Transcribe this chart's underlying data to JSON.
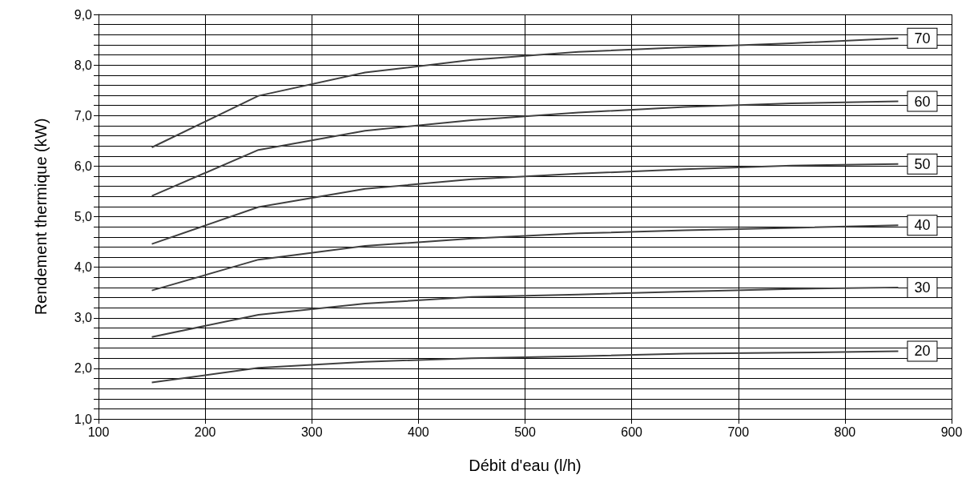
{
  "chart_data": {
    "type": "line",
    "xlabel": "Débit d'eau (l/h)",
    "ylabel": "Rendement thermique (kW)",
    "x": [
      150,
      250,
      350,
      450,
      550,
      650,
      750,
      850
    ],
    "series": [
      {
        "name": "70",
        "color": "#404040",
        "values": [
          6.37,
          7.39,
          7.85,
          8.1,
          8.26,
          8.35,
          8.43,
          8.53
        ]
      },
      {
        "name": "60",
        "color": "#404040",
        "values": [
          5.41,
          6.32,
          6.7,
          6.91,
          7.06,
          7.17,
          7.24,
          7.28
        ]
      },
      {
        "name": "50",
        "color": "#404040",
        "values": [
          4.46,
          5.19,
          5.55,
          5.74,
          5.85,
          5.94,
          6.01,
          6.04
        ]
      },
      {
        "name": "40",
        "color": "#404040",
        "values": [
          3.54,
          4.15,
          4.42,
          4.57,
          4.67,
          4.73,
          4.78,
          4.83
        ]
      },
      {
        "name": "30",
        "color": "#404040",
        "values": [
          2.62,
          3.06,
          3.28,
          3.41,
          3.46,
          3.52,
          3.57,
          3.6
        ]
      },
      {
        "name": "20",
        "color": "#404040",
        "values": [
          1.72,
          2.01,
          2.13,
          2.2,
          2.24,
          2.29,
          2.31,
          2.34
        ]
      }
    ],
    "xlim": [
      100,
      900
    ],
    "xticks": [
      100,
      200,
      300,
      400,
      500,
      600,
      700,
      800,
      900
    ],
    "ylim": [
      1,
      9
    ],
    "yticks": [
      {
        "value": 1,
        "label": "1,0"
      },
      {
        "value": 1.2,
        "label": null
      },
      {
        "value": 1.4,
        "label": null
      },
      {
        "value": 1.6,
        "label": null
      },
      {
        "value": 1.8,
        "label": null
      },
      {
        "value": 2,
        "label": "2,0"
      },
      {
        "value": 2.2,
        "label": null
      },
      {
        "value": 2.4,
        "label": null
      },
      {
        "value": 2.6,
        "label": null
      },
      {
        "value": 2.8,
        "label": null
      },
      {
        "value": 3,
        "label": "3,0"
      },
      {
        "value": 3.2,
        "label": null
      },
      {
        "value": 3.4,
        "label": null
      },
      {
        "value": 3.6,
        "label": null
      },
      {
        "value": 3.8,
        "label": null
      },
      {
        "value": 4,
        "label": "4,0"
      },
      {
        "value": 4.2,
        "label": null
      },
      {
        "value": 4.4,
        "label": null
      },
      {
        "value": 4.6,
        "label": null
      },
      {
        "value": 4.8,
        "label": null
      },
      {
        "value": 5,
        "label": "5,0"
      },
      {
        "value": 5.2,
        "label": null
      },
      {
        "value": 5.4,
        "label": null
      },
      {
        "value": 5.6,
        "label": null
      },
      {
        "value": 5.8,
        "label": null
      },
      {
        "value": 6,
        "label": "6,0"
      },
      {
        "value": 6.2,
        "label": null
      },
      {
        "value": 6.4,
        "label": null
      },
      {
        "value": 6.6,
        "label": null
      },
      {
        "value": 6.8,
        "label": null
      },
      {
        "value": 7,
        "label": "7,0"
      },
      {
        "value": 7.2,
        "label": null
      },
      {
        "value": 7.4,
        "label": null
      },
      {
        "value": 7.6,
        "label": null
      },
      {
        "value": 7.8,
        "label": null
      },
      {
        "value": 8,
        "label": "8,0"
      },
      {
        "value": 8.2,
        "label": null
      },
      {
        "value": 8.4,
        "label": null
      },
      {
        "value": 8.6,
        "label": null
      },
      {
        "value": 8.8,
        "label": null
      },
      {
        "value": 9,
        "label": "9,0"
      }
    ],
    "grid": true,
    "legend": false,
    "marker": "none",
    "line_style": "solid"
  }
}
